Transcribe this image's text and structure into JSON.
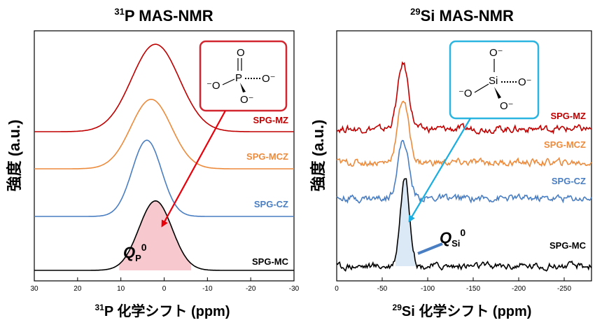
{
  "chart_data": [
    {
      "type": "line",
      "title_sup": "31",
      "title_main": "P MAS-NMR",
      "ylabel": "強度 (a.u.)",
      "xlabel_sup": "31",
      "xlabel_main": "P 化学シフト (ppm)",
      "xlim": [
        30,
        -30
      ],
      "x_ticks": [
        "30",
        "20",
        "10",
        "0",
        "-10",
        "-20",
        "-30"
      ],
      "series": [
        {
          "name": "SPG-MZ",
          "color": "#c00000",
          "peak_ppm": 2,
          "fwhm_ppm": 13,
          "height": 0.78
        },
        {
          "name": "SPG-MCZ",
          "color": "#ed8b3c",
          "peak_ppm": 3,
          "fwhm_ppm": 11,
          "height": 0.62
        },
        {
          "name": "SPG-CZ",
          "color": "#4a7ec2",
          "peak_ppm": 4,
          "fwhm_ppm": 8,
          "height": 0.68
        },
        {
          "name": "SPG-MC",
          "color": "#000000",
          "peak_ppm": 2,
          "fwhm_ppm": 9,
          "height": 0.62
        }
      ],
      "annotation": {
        "label_main": "Q",
        "label_sub": "P",
        "label_sup": "0",
        "fill": "#f7c9cf",
        "arrow_color": "#e8000b"
      },
      "structure": {
        "box_color": "#d22630",
        "atoms": {
          "O_top": "O",
          "P": "P",
          "O_left": "⁻O",
          "O_right": "O⁻",
          "O_bottom": "O⁻"
        }
      }
    },
    {
      "type": "line",
      "title_sup": "29",
      "title_main": "Si MAS-NMR",
      "ylabel": "強度 (a.u.)",
      "xlabel_sup": "29",
      "xlabel_main": "Si 化学シフト (ppm)",
      "xlim": [
        0,
        -280
      ],
      "x_ticks": [
        "0",
        "-50",
        "-100",
        "-150",
        "-200",
        "-250"
      ],
      "series": [
        {
          "name": "SPG-MZ",
          "color": "#c00000",
          "peak_ppm": -73,
          "fwhm_ppm": 14,
          "height": 0.62
        },
        {
          "name": "SPG-MCZ",
          "color": "#ed8b3c",
          "peak_ppm": -73,
          "fwhm_ppm": 14,
          "height": 0.6
        },
        {
          "name": "SPG-CZ",
          "color": "#4a7ec2",
          "peak_ppm": -73,
          "fwhm_ppm": 14,
          "height": 0.55
        },
        {
          "name": "SPG-MC",
          "color": "#000000",
          "peak_ppm": -75,
          "fwhm_ppm": 12,
          "height": 0.85
        }
      ],
      "annotation": {
        "label_main": "Q",
        "label_sub": "Si",
        "label_sup": "0",
        "fill": "#dbe8f6",
        "arrow_color": "#1aaee0"
      },
      "structure": {
        "box_color": "#2bb5e0",
        "atoms": {
          "O_top": "O⁻",
          "Si": "Si",
          "O_left": "⁻O",
          "O_right": "O⁻",
          "O_bottom": "O⁻"
        }
      }
    }
  ]
}
